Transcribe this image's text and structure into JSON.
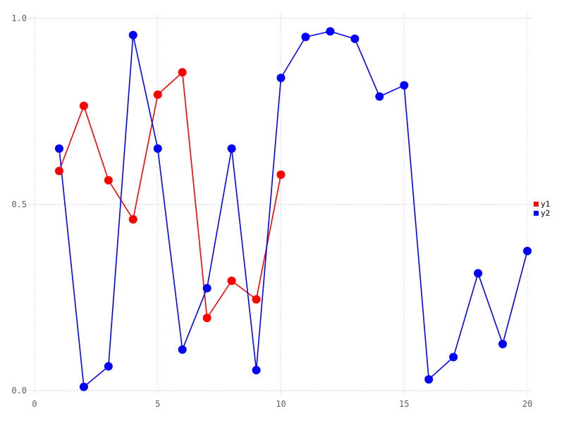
{
  "figure": {
    "background": "#ffffff"
  },
  "chart_data": {
    "type": "line",
    "title": "",
    "xlabel": "",
    "ylabel": "",
    "xlim": [
      0,
      20
    ],
    "ylim": [
      0.0,
      1.0
    ],
    "grid": true,
    "legend_position": "right",
    "x_ticks": [
      {
        "value": 0,
        "label": "0"
      },
      {
        "value": 5,
        "label": "5"
      },
      {
        "value": 10,
        "label": "10"
      },
      {
        "value": 15,
        "label": "15"
      },
      {
        "value": 20,
        "label": "20"
      }
    ],
    "y_ticks": [
      {
        "value": 0.0,
        "label": "0.0"
      },
      {
        "value": 0.5,
        "label": "0.5"
      },
      {
        "value": 1.0,
        "label": "1.0"
      }
    ],
    "series": [
      {
        "name": "y1",
        "color": "#ff0000",
        "x": [
          1,
          2,
          3,
          4,
          5,
          6,
          7,
          8,
          9,
          10
        ],
        "values": [
          0.59,
          0.765,
          0.565,
          0.46,
          0.795,
          0.855,
          0.195,
          0.295,
          0.245,
          0.58
        ]
      },
      {
        "name": "y2",
        "color": "#0000ff",
        "x": [
          1,
          2,
          3,
          4,
          5,
          6,
          7,
          8,
          9,
          10,
          11,
          12,
          13,
          14,
          15,
          16,
          17,
          18,
          19,
          20
        ],
        "values": [
          0.65,
          0.01,
          0.065,
          0.955,
          0.65,
          0.11,
          0.275,
          0.65,
          0.055,
          0.84,
          0.95,
          0.965,
          0.945,
          0.79,
          0.82,
          0.03,
          0.09,
          0.315,
          0.125,
          0.375
        ]
      }
    ],
    "colors": {
      "grid_horizontal": "#c9c9c9",
      "grid_vertical": "#ccccda",
      "tick_label": "#5f5f5f",
      "legend_text": "#000000"
    }
  }
}
